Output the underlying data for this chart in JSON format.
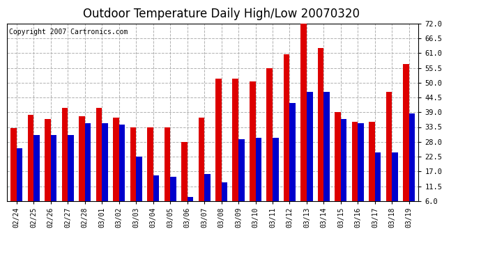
{
  "title": "Outdoor Temperature Daily High/Low 20070320",
  "copyright": "Copyright 2007 Cartronics.com",
  "categories": [
    "02/24",
    "02/25",
    "02/26",
    "02/27",
    "02/28",
    "03/01",
    "03/02",
    "03/03",
    "03/04",
    "03/05",
    "03/06",
    "03/07",
    "03/08",
    "03/09",
    "03/10",
    "03/11",
    "03/12",
    "03/13",
    "03/14",
    "03/15",
    "03/16",
    "03/17",
    "03/18",
    "03/19"
  ],
  "highs": [
    33.0,
    38.0,
    36.5,
    40.5,
    37.5,
    40.5,
    37.0,
    33.5,
    33.5,
    33.5,
    28.0,
    37.0,
    51.5,
    51.5,
    50.5,
    55.5,
    60.5,
    73.0,
    63.0,
    39.0,
    35.5,
    35.5,
    46.5,
    57.0
  ],
  "lows": [
    25.5,
    30.5,
    30.5,
    30.5,
    35.0,
    35.0,
    34.5,
    22.5,
    15.5,
    15.0,
    7.5,
    16.0,
    13.0,
    29.0,
    29.5,
    29.5,
    42.5,
    46.5,
    46.5,
    36.5,
    35.0,
    24.0,
    24.0,
    38.5
  ],
  "high_color": "#dd0000",
  "low_color": "#0000cc",
  "bg_color": "#ffffff",
  "plot_bg_color": "#ffffff",
  "grid_color": "#b0b0b0",
  "ylim": [
    6.0,
    72.0
  ],
  "yticks": [
    6.0,
    11.5,
    17.0,
    22.5,
    28.0,
    33.5,
    39.0,
    44.5,
    50.0,
    55.5,
    61.0,
    66.5,
    72.0
  ],
  "title_fontsize": 12,
  "copyright_fontsize": 7,
  "bar_width": 0.35
}
